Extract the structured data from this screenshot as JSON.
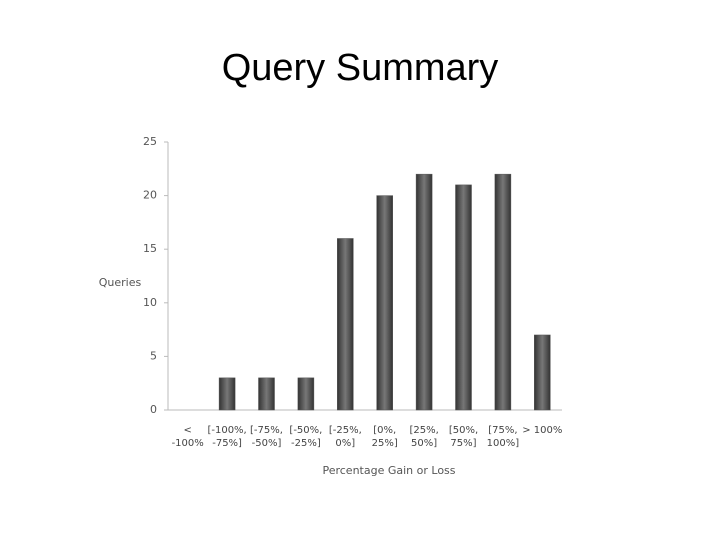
{
  "chart_data": {
    "type": "bar",
    "title": "Query Summary",
    "categories": [
      "< -100%",
      "[-100%, -75%]",
      "[-75%, -50%]",
      "[-50%, -25%]",
      "[-25%, 0%]",
      "[0%, 25%]",
      "[25%, 50%]",
      "[50%, 75%]",
      "[75%, 100%]",
      "> 100%"
    ],
    "values": [
      0,
      3,
      3,
      3,
      16,
      20,
      22,
      21,
      22,
      7
    ],
    "color": "#555555",
    "ylim": [
      0,
      25
    ],
    "yticks": [
      0,
      5,
      10,
      15,
      20,
      25
    ],
    "grid": false,
    "x_label": "Percentage Gain or Loss",
    "y_label": "Queries"
  }
}
